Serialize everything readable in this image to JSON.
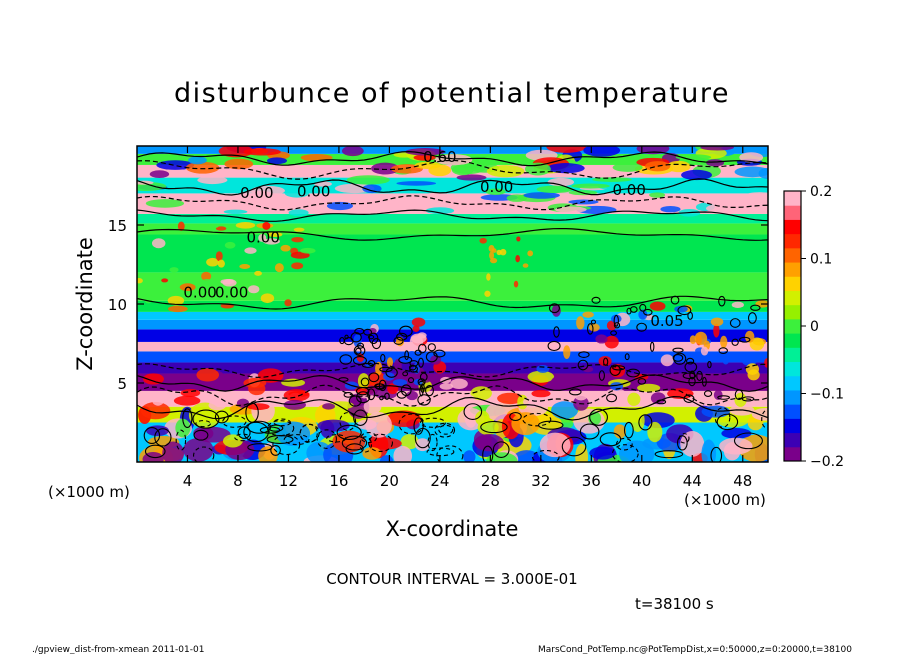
{
  "chart_data": {
    "type": "heatmap",
    "title": "disturbunce of potential temperature",
    "xlabel": "X-coordinate",
    "ylabel": "Z-coordinate",
    "x_unit": "(×1000 m)",
    "y_unit": "(×1000 m)",
    "xlim": [
      0,
      50
    ],
    "ylim": [
      0,
      20
    ],
    "x_ticks": [
      4,
      8,
      12,
      16,
      20,
      24,
      28,
      32,
      36,
      40,
      44,
      48
    ],
    "y_ticks": [
      5,
      10,
      15
    ],
    "colorbar": {
      "range": [
        -0.2,
        0.2
      ],
      "tick_values": [
        0.2,
        0.1,
        0,
        -0.1,
        -0.2
      ],
      "tick_labels": [
        "0.2",
        "0.1",
        "0",
        "−0.1",
        "−0.2"
      ],
      "colors": [
        "#7a008a",
        "#3c00b4",
        "#0000e6",
        "#0050ff",
        "#0096ff",
        "#00c8ff",
        "#00e6dc",
        "#00f096",
        "#00e650",
        "#3cf03c",
        "#96f000",
        "#d2f000",
        "#ffd200",
        "#ffa000",
        "#ff6400",
        "#ff2800",
        "#ff0000",
        "#ff6478",
        "#ffb4c8"
      ]
    },
    "contour_labels": [
      "0.60",
      "0.00",
      "0.00",
      "0.00",
      "0.00",
      "0.00",
      "0.00",
      "0.00",
      "0.05"
    ],
    "contour_interval_text": "CONTOUR INTERVAL = 3.000E-01",
    "time_text": "t=38100 s"
  },
  "footer": {
    "left": "./gpview_dist-from-xmean   2011-01-01",
    "right": "MarsCond_PotTemp.nc@PotTempDist,x=0:50000,z=0:20000,t=38100"
  }
}
